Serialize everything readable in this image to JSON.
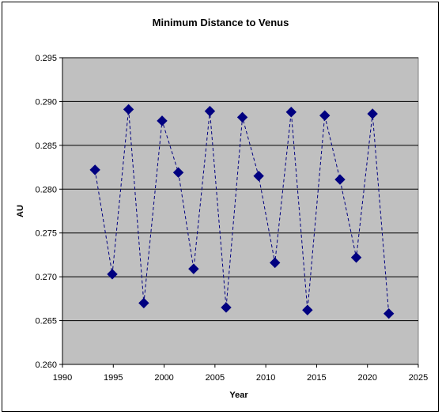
{
  "chart_data": {
    "type": "scatter",
    "title": "Minimum Distance to Venus",
    "xlabel": "Year",
    "ylabel": "AU",
    "xlim": [
      1990,
      2025
    ],
    "ylim": [
      0.26,
      0.295
    ],
    "x_ticks": [
      "1990",
      "1995",
      "2000",
      "2005",
      "2010",
      "2015",
      "2020",
      "2025"
    ],
    "y_ticks": [
      "0.260",
      "0.265",
      "0.270",
      "0.275",
      "0.280",
      "0.285",
      "0.290",
      "0.295"
    ],
    "grid": "horizontal",
    "legend": "none",
    "plot_background": "#c0c0c0",
    "marker_color": "#000080",
    "marker": "diamond",
    "line_style": "dashed",
    "series": [
      {
        "x": [
          1993.2,
          1994.9,
          1996.5,
          1998.0,
          1999.8,
          2001.4,
          2002.9,
          2004.5,
          2006.1,
          2007.7,
          2009.3,
          2010.9,
          2012.5,
          2014.1,
          2015.8,
          2017.3,
          2018.9,
          2020.5,
          2022.1
        ],
        "y": [
          0.2822,
          0.2703,
          0.2891,
          0.267,
          0.2878,
          0.2819,
          0.2709,
          0.2889,
          0.2665,
          0.2882,
          0.2815,
          0.2716,
          0.2888,
          0.2662,
          0.2884,
          0.2811,
          0.2722,
          0.2886,
          0.2658
        ]
      }
    ]
  }
}
